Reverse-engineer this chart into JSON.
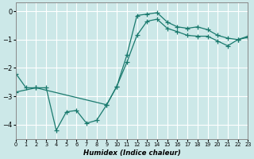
{
  "xlabel": "Humidex (Indice chaleur)",
  "background_color": "#cce8e8",
  "grid_color": "#ffffff",
  "line_color": "#1a7a6e",
  "xlim": [
    0,
    23
  ],
  "ylim": [
    -4.5,
    0.3
  ],
  "yticks": [
    0,
    -1,
    -2,
    -3,
    -4
  ],
  "xticks": [
    0,
    1,
    2,
    3,
    4,
    5,
    6,
    7,
    8,
    9,
    10,
    11,
    12,
    13,
    14,
    15,
    16,
    17,
    18,
    19,
    20,
    21,
    22,
    23
  ],
  "curve_x": [
    0,
    1,
    2,
    3,
    4,
    5,
    6,
    7,
    8,
    9,
    10,
    11,
    12,
    13,
    14,
    15,
    16,
    17,
    18,
    19,
    20,
    21,
    22,
    23
  ],
  "curve_y": [
    -2.2,
    -2.7,
    -2.7,
    -2.7,
    -4.2,
    -3.55,
    -3.5,
    -3.95,
    -3.85,
    -3.3,
    -2.65,
    -1.55,
    -0.15,
    -0.1,
    -0.05,
    -0.38,
    -0.55,
    -0.6,
    -0.55,
    -0.65,
    -0.85,
    -0.95,
    -1.0,
    -0.92
  ],
  "trend_x": [
    0,
    2,
    9,
    10,
    11,
    12,
    13,
    14,
    15,
    16,
    17,
    18,
    19,
    20,
    21,
    22,
    23
  ],
  "trend_y": [
    -2.85,
    -2.7,
    -3.3,
    -2.65,
    -1.8,
    -0.85,
    -0.35,
    -0.28,
    -0.6,
    -0.72,
    -0.85,
    -0.88,
    -0.88,
    -1.05,
    -1.22,
    -1.0,
    -0.88
  ]
}
